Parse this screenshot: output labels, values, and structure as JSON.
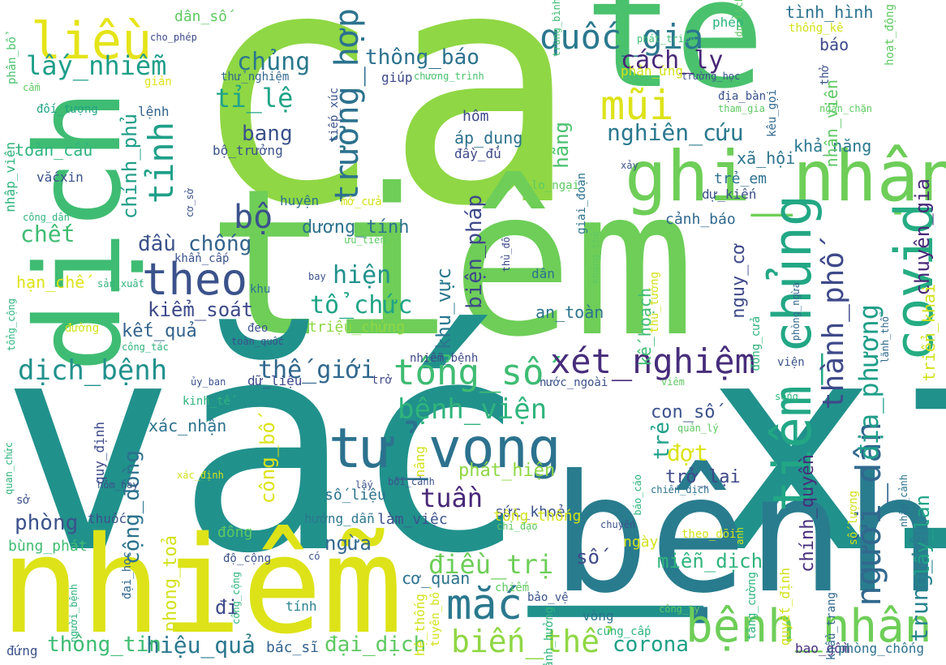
{
  "words": [
    {
      "text": "ca",
      "color": "#8fd744"
    },
    {
      "text": "tế",
      "color": "#4ac16d"
    },
    {
      "text": "tiêm",
      "color": "#6ece58"
    },
    {
      "text": "vắc_xin",
      "color": "#21918c"
    },
    {
      "text": "nhiễm",
      "color": "#dde318"
    },
    {
      "text": "bệnh",
      "color": "#287c8e"
    },
    {
      "text": "dịch",
      "color": "#3fbc73"
    },
    {
      "text": "ghi_nhận",
      "color": "#6ece58"
    },
    {
      "text": "tiêm_chủng",
      "color": "#22a785"
    },
    {
      "text": "covid",
      "color": "#25ac82"
    },
    {
      "text": "tử_vong",
      "color": "#2c728e"
    },
    {
      "text": "liều",
      "color": "#e5e419"
    },
    {
      "text": "bệnh_nhân",
      "color": "#6ece58"
    },
    {
      "text": "mắc",
      "color": "#2a788e"
    },
    {
      "text": "theo",
      "color": "#3b528b"
    },
    {
      "text": "mũi",
      "color": "#dde318"
    },
    {
      "text": "quốc_gia",
      "color": "#2a788e"
    },
    {
      "text": "tổng_số",
      "color": "#3fbc73"
    },
    {
      "text": "xét_nghiệm",
      "color": "#472d7b"
    },
    {
      "text": "người_dân",
      "color": "#31688e"
    },
    {
      "text": "trường_hợp",
      "color": "#2c728e"
    },
    {
      "text": "tỉnh",
      "color": "#1fa088"
    },
    {
      "text": "biến_thể",
      "color": "#8fd744"
    },
    {
      "text": "bệnh_viện",
      "color": "#2fb47c"
    },
    {
      "text": "lấy_nhiễm",
      "color": "#1f9e89"
    },
    {
      "text": "tỉ_lệ",
      "color": "#20a486"
    },
    {
      "text": "dịch_bệnh",
      "color": "#21918c"
    },
    {
      "text": "thành_phố",
      "color": "#3e4989"
    },
    {
      "text": "địa_phương",
      "color": "#1f9e89"
    },
    {
      "text": "điều_trị",
      "color": "#6ece58"
    },
    {
      "text": "tuần",
      "color": "#482878"
    },
    {
      "text": "cách_ly",
      "color": "#482878"
    },
    {
      "text": "thông_báo",
      "color": "#2c728e"
    },
    {
      "text": "chủng",
      "color": "#2a788e"
    },
    {
      "text": "thế_giới",
      "color": "#31688e"
    },
    {
      "text": "nghiên_cứu",
      "color": "#2a788e"
    },
    {
      "text": "bộ",
      "color": "#3b528b"
    },
    {
      "text": "hiện",
      "color": "#21918c"
    },
    {
      "text": "tổ_chức",
      "color": "#20a486"
    },
    {
      "text": "kiểm_soát",
      "color": "#3e4989"
    },
    {
      "text": "cộng_đồng",
      "color": "#2c728e"
    },
    {
      "text": "chết",
      "color": "#3fbc73"
    },
    {
      "text": "bang",
      "color": "#3b528b"
    },
    {
      "text": "chống",
      "color": "#33638d"
    },
    {
      "text": "biện_pháp",
      "color": "#3e4989"
    },
    {
      "text": "đợt",
      "color": "#dde318"
    },
    {
      "text": "trung_tâm",
      "color": "#26828e"
    },
    {
      "text": "chuyên_gia",
      "color": "#482878"
    },
    {
      "text": "chính_phủ",
      "color": "#1f9e89"
    },
    {
      "text": "hiệu_quả",
      "color": "#2a788e"
    },
    {
      "text": "thông_tin",
      "color": "#3fbc73"
    },
    {
      "text": "đại_dịch",
      "color": "#5ec962"
    },
    {
      "text": "corona",
      "color": "#1fa088"
    },
    {
      "text": "đầu",
      "color": "#3b528b"
    },
    {
      "text": "dương_tính",
      "color": "#2c728e"
    },
    {
      "text": "phòng",
      "color": "#3b528b"
    },
    {
      "text": "lây_lan",
      "color": "#20a486"
    },
    {
      "text": "khu_vực",
      "color": "#2a788e"
    },
    {
      "text": "kết_quả",
      "color": "#33638d"
    },
    {
      "text": "miễn_dịch",
      "color": "#2fb47c"
    },
    {
      "text": "con_số",
      "color": "#3b528b"
    },
    {
      "text": "trẻ",
      "color": "#1fa088"
    },
    {
      "text": "trở_lại",
      "color": "#3e4989"
    },
    {
      "text": "công_bố",
      "color": "#dde318"
    },
    {
      "text": "ngừa",
      "color": "#31688e"
    },
    {
      "text": "phong_toả",
      "color": "#d2e21b"
    },
    {
      "text": "nguy_cơ",
      "color": "#3e4989"
    },
    {
      "text": "hãng",
      "color": "#4ac16d"
    },
    {
      "text": "xã_hội",
      "color": "#2c728e"
    },
    {
      "text": "chính_quyền",
      "color": "#472d7b"
    },
    {
      "text": "khả_năng",
      "color": "#2a788e"
    },
    {
      "text": "nhân_viên",
      "color": "#5ec962"
    },
    {
      "text": "tình_hình",
      "color": "#2c728e"
    },
    {
      "text": "báo",
      "color": "#3e4989"
    },
    {
      "text": "phép",
      "color": "#2fb47c"
    },
    {
      "text": "cảnh_báo",
      "color": "#31688e"
    },
    {
      "text": "dự_kiến",
      "color": "#3b528b"
    },
    {
      "text": "trẻ_em",
      "color": "#2c728e"
    },
    {
      "text": "đi",
      "color": "#3e4989"
    },
    {
      "text": "số",
      "color": "#3e4989"
    },
    {
      "text": "phát_hiện",
      "color": "#8fd744"
    },
    {
      "text": "xác_nhận",
      "color": "#2c728e"
    },
    {
      "text": "triển_khai",
      "color": "#d2e21b"
    },
    {
      "text": "áp_dụng",
      "color": "#2c728e"
    },
    {
      "text": "hôm",
      "color": "#3e4989"
    },
    {
      "text": "đầy_đủ",
      "color": "#3e4989"
    },
    {
      "text": "an_toàn",
      "color": "#2c728e"
    },
    {
      "text": "triệu_chứng",
      "color": "#8fd744"
    },
    {
      "text": "kế_hoạch",
      "color": "#3fbc73"
    },
    {
      "text": "sức_khoẻ",
      "color": "#3b528b"
    },
    {
      "text": "số_liệu",
      "color": "#2c728e"
    },
    {
      "text": "hạn_chế",
      "color": "#dde318"
    },
    {
      "text": "toàn_cầu",
      "color": "#2fb47c"
    },
    {
      "text": "nhập_viện",
      "color": "#2fb47c"
    },
    {
      "text": "vắcxin",
      "color": "#3b528b"
    },
    {
      "text": "lệnh",
      "color": "#33638d"
    },
    {
      "text": "giúp",
      "color": "#3e4989"
    },
    {
      "text": "dân_số",
      "color": "#5ec962"
    },
    {
      "text": "phân_bổ",
      "color": "#4ac16d"
    },
    {
      "text": "bộ_trưởng",
      "color": "#3b528b"
    },
    {
      "text": "cơ_quan",
      "color": "#2c728e"
    },
    {
      "text": "làm_việc",
      "color": "#3b528b"
    },
    {
      "text": "ngày",
      "color": "#d2e21b"
    },
    {
      "text": "tổng_thống",
      "color": "#d2e21b"
    },
    {
      "text": "bác_sĩ",
      "color": "#33638d"
    },
    {
      "text": "bùng_phát",
      "color": "#3fbc73"
    },
    {
      "text": "hướng_dẫn",
      "color": "#2a788e"
    },
    {
      "text": "thuốc",
      "color": "#3b528b"
    },
    {
      "text": "huyện",
      "color": "#2c728e"
    },
    {
      "text": "mở_cửa",
      "color": "#d2e21b"
    },
    {
      "text": "dân",
      "color": "#2c728e"
    },
    {
      "text": "đông",
      "color": "#5ec962"
    },
    {
      "text": "tính",
      "color": "#26828e"
    },
    {
      "text": "vòng",
      "color": "#2c728e"
    },
    {
      "text": "bảo_vệ",
      "color": "#3b528b"
    },
    {
      "text": "bao_gồm",
      "color": "#472d7b"
    },
    {
      "text": "phòng_chống",
      "color": "#2c728e"
    },
    {
      "text": "đứng",
      "color": "#3b528b"
    },
    {
      "text": "đại_học",
      "color": "#31688e"
    },
    {
      "text": "tiếp_xúc",
      "color": "#3b528b"
    },
    {
      "text": "thử_nghiệm",
      "color": "#31688e"
    },
    {
      "text": "chương_trình",
      "color": "#4ac16d"
    },
    {
      "text": "cho_phép",
      "color": "#3e4989"
    },
    {
      "text": "trung_bình",
      "color": "#3fbc73"
    },
    {
      "text": "phát_triển",
      "color": "#3fbc73"
    },
    {
      "text": "du_lịch",
      "color": "#5ec962"
    },
    {
      "text": "thống_kê",
      "color": "#d2e21b"
    },
    {
      "text": "hoạt_động",
      "color": "#5ec962"
    },
    {
      "text": "giản",
      "color": "#dde318"
    },
    {
      "text": "cấm",
      "color": "#5ec962"
    },
    {
      "text": "đối_tượng",
      "color": "#20a486"
    },
    {
      "text": "phản_ứng",
      "color": "#d2e21b"
    },
    {
      "text": "trường_học",
      "color": "#3b528b"
    },
    {
      "text": "địa_bàn",
      "color": "#3b528b"
    },
    {
      "text": "tham_gia",
      "color": "#5ec962"
    },
    {
      "text": "ngăn_chặn",
      "color": "#5ec962"
    },
    {
      "text": "kêu_gọi",
      "color": "#31688e"
    },
    {
      "text": "thở",
      "color": "#3b528b"
    },
    {
      "text": "giai_đoạn",
      "color": "#2c728e"
    },
    {
      "text": "lo_ngại",
      "color": "#5ec962"
    },
    {
      "text": "xảy",
      "color": "#3b528b"
    },
    {
      "text": "công_dân",
      "color": "#2fb47c"
    },
    {
      "text": "cơ_sở",
      "color": "#3b528b"
    },
    {
      "text": "ưu_tiên",
      "color": "#5ec962"
    },
    {
      "text": "thủ_đô",
      "color": "#3e4989"
    },
    {
      "text": "kháng_thể",
      "color": "#5ec962"
    },
    {
      "text": "giám_đốc",
      "color": "#5ec962"
    },
    {
      "text": "khẩn_cấp",
      "color": "#3b528b"
    },
    {
      "text": "sản_xuất",
      "color": "#2fb47c"
    },
    {
      "text": "khu",
      "color": "#2c728e"
    },
    {
      "text": "bay",
      "color": "#3b528b"
    },
    {
      "text": "tổng_cộng",
      "color": "#2fb47c"
    },
    {
      "text": "đường",
      "color": "#d2e21b"
    },
    {
      "text": "đeo",
      "color": "#3b528b"
    },
    {
      "text": "toàn_quốc",
      "color": "#3b528b"
    },
    {
      "text": "công_tác",
      "color": "#2fb47c"
    },
    {
      "text": "nhiễm_bệnh",
      "color": "#3e4989"
    },
    {
      "text": "thủ_tướng",
      "color": "#d2e21b"
    },
    {
      "text": "phòng_ngừa",
      "color": "#31688e"
    },
    {
      "text": "lãnh_thổ",
      "color": "#31688e"
    },
    {
      "text": "đóng_cửa",
      "color": "#2fb47c"
    },
    {
      "text": "viện",
      "color": "#3b528b"
    },
    {
      "text": "ủy_ban",
      "color": "#3b528b"
    },
    {
      "text": "dữ_liệu",
      "color": "#3e4989"
    },
    {
      "text": "trở",
      "color": "#3e4989"
    },
    {
      "text": "nước_ngoài",
      "color": "#3b528b"
    },
    {
      "text": "viêm",
      "color": "#5ec962"
    },
    {
      "text": "kinh_tế",
      "color": "#2fb47c"
    },
    {
      "text": "sống",
      "color": "#2fb47c"
    },
    {
      "text": "quản_lý",
      "color": "#5ec962"
    },
    {
      "text": "quy_định",
      "color": "#3e4989"
    },
    {
      "text": "quan_chức",
      "color": "#2fb47c"
    },
    {
      "text": "xác_định",
      "color": "#d2e21b"
    },
    {
      "text": "hôm_nay",
      "color": "#3b528b"
    },
    {
      "text": "bối_cảnh",
      "color": "#3b528b"
    },
    {
      "text": "lấy",
      "color": "#3b528b"
    },
    {
      "text": "chỉ_đạo",
      "color": "#5ec962"
    },
    {
      "text": "nâng",
      "color": "#d2e21b"
    },
    {
      "text": "báo_cáo",
      "color": "#2fb47c"
    },
    {
      "text": "chiến_dịch",
      "color": "#2c728e"
    },
    {
      "text": "sở",
      "color": "#3b528b"
    },
    {
      "text": "chuyến",
      "color": "#3b528b"
    },
    {
      "text": "số_lượng",
      "color": "#d2e21b"
    },
    {
      "text": "nhập_cảnh",
      "color": "#2c728e"
    },
    {
      "text": "anh",
      "color": "#d2e21b"
    },
    {
      "text": "theo_dõi",
      "color": "#d2e21b"
    },
    {
      "text": "độ_cộng",
      "color": "#3b528b"
    },
    {
      "text": "có",
      "color": "#3b528b"
    },
    {
      "text": "người_bệnh",
      "color": "#2fb47c"
    },
    {
      "text": "công_cộng",
      "color": "#2fb47c"
    },
    {
      "text": "hệ_thống",
      "color": "#d2e21b"
    },
    {
      "text": "tuyên_bố",
      "color": "#d2e21b"
    },
    {
      "text": "ảnh_hưởng",
      "color": "#2fb47c"
    },
    {
      "text": "chiếm",
      "color": "#5ec962"
    },
    {
      "text": "cung_cấp",
      "color": "#2fb47c"
    },
    {
      "text": "quyết_định",
      "color": "#d2e21b"
    },
    {
      "text": "tăng_cường",
      "color": "#2fb47c"
    },
    {
      "text": "khẩu_trang",
      "color": "#31688e"
    },
    {
      "text": "công_ty",
      "color": "#5ec962"
    }
  ]
}
